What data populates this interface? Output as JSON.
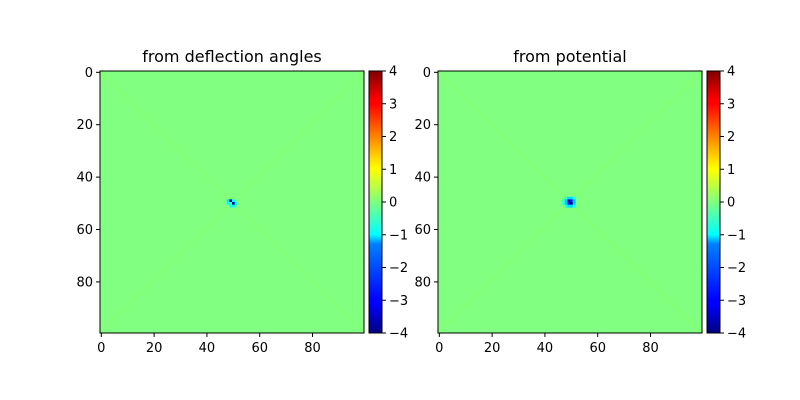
{
  "colors": {
    "background_value_color": "#7dff7a",
    "colormap": "jet"
  },
  "chart_data": [
    {
      "type": "heatmap",
      "title": "from deflection angles",
      "xlabel": "",
      "ylabel": "",
      "grid_size": [
        100,
        100
      ],
      "xlim": [
        0,
        99
      ],
      "ylim": [
        99,
        0
      ],
      "x_ticks": [
        0,
        20,
        40,
        60,
        80
      ],
      "y_ticks": [
        0,
        20,
        40,
        60,
        80
      ],
      "background_value": 0,
      "colorbar": {
        "range": [
          -4,
          4
        ],
        "ticks": [
          4,
          3,
          2,
          1,
          0,
          -1,
          -2,
          -3,
          -4
        ]
      },
      "features": [
        {
          "col": 48,
          "row": 49,
          "value": -1.2
        },
        {
          "col": 49,
          "row": 49,
          "value": -4
        },
        {
          "col": 50,
          "row": 49,
          "value": -1.0
        },
        {
          "col": 48,
          "row": 50,
          "value": -1.0
        },
        {
          "col": 49,
          "row": 50,
          "value": -0.6
        },
        {
          "col": 50,
          "row": 50,
          "value": -4
        },
        {
          "col": 51,
          "row": 50,
          "value": -1.0
        },
        {
          "col": 49,
          "row": 51,
          "value": -0.8
        },
        {
          "col": 50,
          "row": 51,
          "value": -0.8
        }
      ]
    },
    {
      "type": "heatmap",
      "title": "from potential",
      "xlabel": "",
      "ylabel": "",
      "grid_size": [
        100,
        100
      ],
      "xlim": [
        0,
        99
      ],
      "ylim": [
        99,
        0
      ],
      "x_ticks": [
        0,
        20,
        40,
        60,
        80
      ],
      "y_ticks": [
        0,
        20,
        40,
        60,
        80
      ],
      "background_value": 0,
      "colorbar": {
        "range": [
          -4,
          4
        ],
        "ticks": [
          4,
          3,
          2,
          1,
          0,
          -1,
          -2,
          -3,
          -4
        ]
      },
      "features": [
        {
          "col": 48,
          "row": 48,
          "value": -0.8
        },
        {
          "col": 49,
          "row": 48,
          "value": -1.3
        },
        {
          "col": 50,
          "row": 48,
          "value": -1.3
        },
        {
          "col": 51,
          "row": 48,
          "value": -0.8
        },
        {
          "col": 47,
          "row": 49,
          "value": -0.6
        },
        {
          "col": 48,
          "row": 49,
          "value": -1.4
        },
        {
          "col": 49,
          "row": 49,
          "value": -4
        },
        {
          "col": 50,
          "row": 49,
          "value": -2.8
        },
        {
          "col": 51,
          "row": 49,
          "value": -1.4
        },
        {
          "col": 47,
          "row": 50,
          "value": -0.6
        },
        {
          "col": 48,
          "row": 50,
          "value": -1.4
        },
        {
          "col": 49,
          "row": 50,
          "value": -2.8
        },
        {
          "col": 50,
          "row": 50,
          "value": -4
        },
        {
          "col": 51,
          "row": 50,
          "value": -1.4
        },
        {
          "col": 48,
          "row": 51,
          "value": -0.8
        },
        {
          "col": 49,
          "row": 51,
          "value": -1.3
        },
        {
          "col": 50,
          "row": 51,
          "value": -1.3
        },
        {
          "col": 51,
          "row": 51,
          "value": -0.8
        }
      ]
    }
  ]
}
